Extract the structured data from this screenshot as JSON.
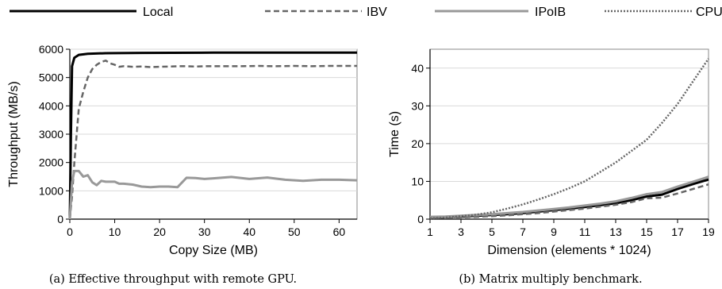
{
  "legend": [
    {
      "name": "Local",
      "color": "#000000",
      "style": "solid",
      "width": 3
    },
    {
      "name": "IBV",
      "color": "#666666",
      "style": "dashed",
      "width": 2.5
    },
    {
      "name": "IPoIB",
      "color": "#999999",
      "style": "solid",
      "width": 3
    },
    {
      "name": "CPU",
      "color": "#666666",
      "style": "dotted",
      "width": 2.5
    }
  ],
  "chart_data": [
    {
      "type": "line",
      "caption": "(a) Effective throughput with remote GPU.",
      "xlabel": "Copy Size (MB)",
      "ylabel": "Throughput (MB/s)",
      "xlim": [
        0,
        64
      ],
      "ylim": [
        0,
        6000
      ],
      "xticks": [
        0,
        10,
        20,
        30,
        40,
        50,
        60
      ],
      "yticks": [
        0,
        1000,
        2000,
        3000,
        4000,
        5000,
        6000
      ],
      "grid": "horizontal",
      "series": [
        {
          "name": "Local",
          "x": [
            0,
            0.25,
            0.5,
            1,
            2,
            4,
            8,
            16,
            32,
            64
          ],
          "y": [
            0,
            3000,
            5400,
            5700,
            5800,
            5840,
            5860,
            5870,
            5880,
            5880
          ]
        },
        {
          "name": "IBV",
          "x": [
            0,
            0.5,
            1,
            2,
            3,
            4,
            5,
            6,
            7,
            8,
            9,
            10,
            11,
            12,
            14,
            16,
            18,
            20,
            22,
            24,
            26,
            28,
            30,
            34,
            38,
            42,
            46,
            50,
            54,
            58,
            62,
            64
          ],
          "y": [
            0,
            800,
            2000,
            3900,
            4500,
            5000,
            5300,
            5450,
            5550,
            5600,
            5500,
            5450,
            5380,
            5400,
            5380,
            5390,
            5370,
            5380,
            5390,
            5400,
            5400,
            5390,
            5400,
            5400,
            5400,
            5410,
            5400,
            5410,
            5400,
            5410,
            5410,
            5410
          ]
        },
        {
          "name": "IPoIB",
          "x": [
            0,
            0.5,
            1,
            2,
            3,
            4,
            5,
            6,
            7,
            8,
            10,
            11,
            12,
            14,
            16,
            18,
            20,
            22,
            24,
            26,
            28,
            30,
            32,
            36,
            40,
            44,
            48,
            52,
            56,
            60,
            64
          ],
          "y": [
            0,
            1300,
            1700,
            1700,
            1500,
            1550,
            1300,
            1200,
            1350,
            1320,
            1320,
            1250,
            1250,
            1220,
            1150,
            1130,
            1150,
            1150,
            1130,
            1460,
            1450,
            1420,
            1440,
            1490,
            1420,
            1470,
            1390,
            1350,
            1390,
            1390,
            1370
          ]
        }
      ]
    },
    {
      "type": "line",
      "caption": "(b) Matrix multiply benchmark.",
      "xlabel": "Dimension (elements * 1024)",
      "ylabel": "Time (s)",
      "xlim": [
        1,
        19
      ],
      "ylim": [
        0,
        45
      ],
      "xticks": [
        1,
        3,
        5,
        7,
        9,
        11,
        13,
        15,
        17,
        19
      ],
      "yticks": [
        0,
        10,
        20,
        30,
        40
      ],
      "grid": "horizontal",
      "series": [
        {
          "name": "Local",
          "x": [
            1,
            2,
            3,
            4,
            5,
            6,
            7,
            8,
            9,
            10,
            11,
            12,
            13,
            14,
            15,
            16,
            17,
            18,
            19
          ],
          "y": [
            0.5,
            0.6,
            0.7,
            0.9,
            1.1,
            1.3,
            1.6,
            2.0,
            2.4,
            2.8,
            3.2,
            3.7,
            4.2,
            5.0,
            6.0,
            6.5,
            8.0,
            9.3,
            10.5
          ]
        },
        {
          "name": "IBV",
          "x": [
            1,
            2,
            3,
            4,
            5,
            6,
            7,
            8,
            9,
            10,
            11,
            12,
            13,
            14,
            15,
            16,
            17,
            18,
            19
          ],
          "y": [
            0.3,
            0.4,
            0.5,
            0.6,
            0.8,
            1.0,
            1.3,
            1.6,
            2.0,
            2.4,
            2.8,
            3.3,
            3.8,
            4.5,
            5.5,
            5.7,
            6.8,
            8.0,
            9.2
          ]
        },
        {
          "name": "IPoIB",
          "x": [
            1,
            2,
            3,
            4,
            5,
            6,
            7,
            8,
            9,
            10,
            11,
            12,
            13,
            14,
            15,
            16,
            17,
            18,
            19
          ],
          "y": [
            0.6,
            0.7,
            0.9,
            1.1,
            1.3,
            1.6,
            1.9,
            2.3,
            2.7,
            3.1,
            3.6,
            4.1,
            4.7,
            5.6,
            6.6,
            7.2,
            8.6,
            9.9,
            11.2
          ]
        },
        {
          "name": "CPU",
          "x": [
            1,
            2,
            3,
            4,
            5,
            6,
            7,
            8,
            9,
            10,
            11,
            12,
            13,
            14,
            15,
            16,
            17,
            18,
            19
          ],
          "y": [
            0.2,
            0.4,
            0.8,
            1.2,
            1.8,
            2.8,
            3.9,
            5.2,
            6.6,
            8.2,
            10.0,
            12.5,
            15.0,
            18.0,
            21.0,
            25.5,
            30.5,
            36.5,
            42.5
          ]
        }
      ]
    }
  ]
}
